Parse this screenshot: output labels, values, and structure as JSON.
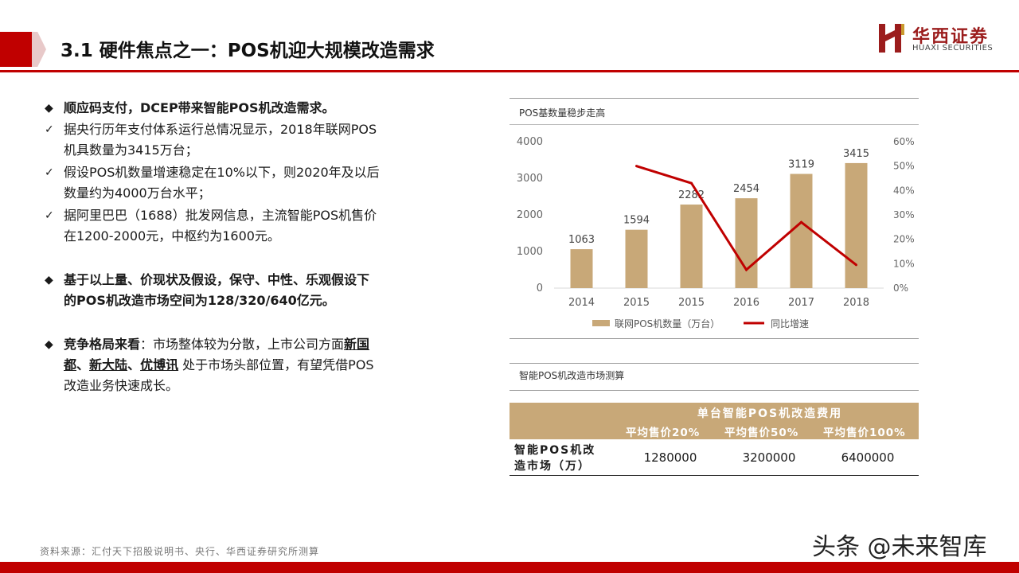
{
  "header": {
    "title": "3.1 硬件焦点之一：POS机迎大规模改造需求",
    "logo_cn": "华西证券",
    "logo_en": "HUAXI SECURITIES"
  },
  "left": {
    "p1_head": "顺应码支付，DCEP带来智能POS机改造需求。",
    "p1_items": [
      [
        "据央行历年支付体系运行总情况显示，2018年联网POS",
        "机具数量为3415万台；"
      ],
      [
        "假设POS机数量增速稳定在10%以下，则2020年及以后",
        "数量约为4000万台水平；"
      ],
      [
        "据阿里巴巴（1688）批发网信息，主流智能POS机售价",
        "在1200-2000元，中枢约为1600元。"
      ]
    ],
    "p2": [
      "基于以上量、价现状及假设，保守、中性、乐观假设下",
      "的POS机改造市场空间为128/320/640亿元。"
    ],
    "p3": {
      "lead": "竞争格局来看",
      "text1": "：市场整体较为分散，上市公司方面",
      "co1a": "新国",
      "co1b": "都",
      "sep1": "、",
      "co2": "新大陆",
      "sep2": "、",
      "co3": "优博讯",
      "text2": " 处于市场头部位置，有望凭借POS",
      "text3": "改造业务快速成长。"
    }
  },
  "chart_data": {
    "type": "bar",
    "title": "POS基数量稳步走高",
    "categories": [
      "2014",
      "2015",
      "2015",
      "2016",
      "2017",
      "2018"
    ],
    "series": [
      {
        "name": "联网POS机数量（万台）",
        "type": "bar",
        "axis": "left",
        "color": "#c8a878",
        "values": [
          1063,
          1594,
          2282,
          2454,
          3119,
          3415
        ]
      },
      {
        "name": "同比增速",
        "type": "line",
        "axis": "right",
        "color": "#c00000",
        "values": [
          null,
          0.5,
          0.43,
          0.075,
          0.27,
          0.095
        ]
      }
    ],
    "ylim_left": [
      0,
      4000
    ],
    "yticks_left": [
      "0",
      "1000",
      "2000",
      "3000",
      "4000"
    ],
    "ylim_right": [
      0,
      0.6
    ],
    "yticks_right": [
      "0%",
      "10%",
      "20%",
      "30%",
      "40%",
      "50%",
      "60%"
    ],
    "data_labels": [
      "1063",
      "1594",
      "2282",
      "2454",
      "3119",
      "3415"
    ],
    "legend_position": "bottom"
  },
  "table": {
    "title": "智能POS机改造市场测算",
    "header_main": "单台智能POS机改造费用",
    "header_cols": [
      "平均售价20%",
      "平均售价50%",
      "平均售价100%"
    ],
    "row_label": [
      "智能POS机改",
      "造市场（万）"
    ],
    "row_values": [
      "1280000",
      "3200000",
      "6400000"
    ]
  },
  "footer": {
    "source": "资料来源：汇付天下招股说明书、央行、华西证券研究所测算",
    "watermark": "头条 @未来智库"
  },
  "colors": {
    "brand_red": "#c00000",
    "bar_tan": "#c8a878"
  }
}
